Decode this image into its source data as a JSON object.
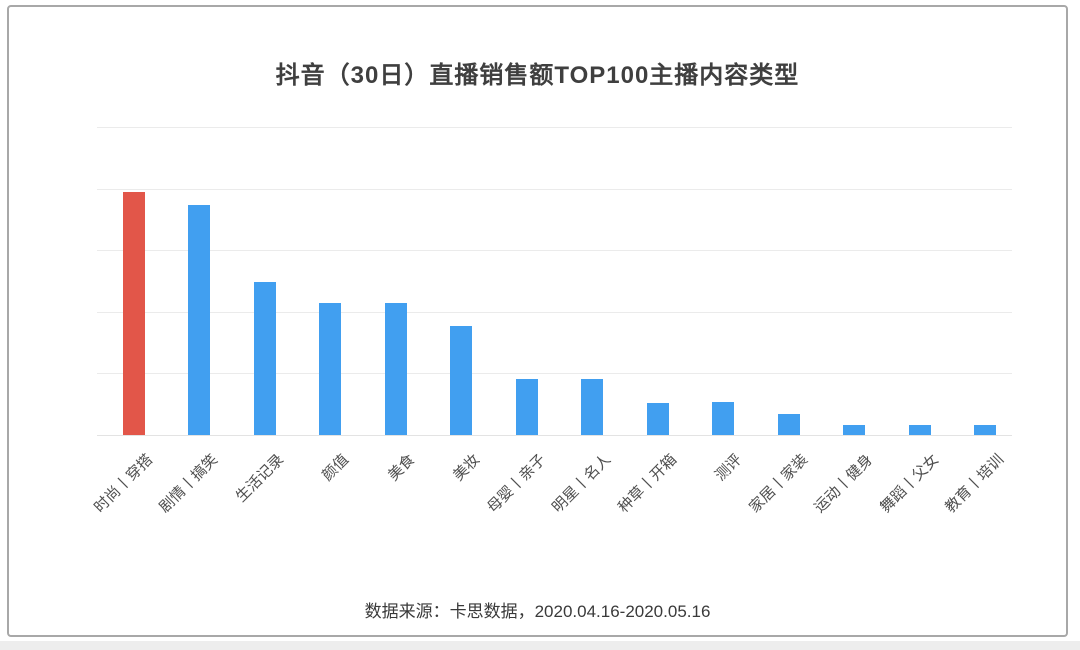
{
  "page": {
    "card_border_color": "#a8a8a8",
    "bottom_strip_color": "#ededed"
  },
  "chart_data": {
    "type": "bar",
    "title": "抖音（30日）直播销售额TOP100主播内容类型",
    "source_note": "数据来源：卡思数据，2020.04.16-2020.05.16",
    "categories": [
      "时尚丨穿搭",
      "剧情丨搞笑",
      "生活记录",
      "颜值",
      "美食",
      "美妆",
      "母婴丨亲子",
      "明星丨名人",
      "种草丨开箱",
      "测评",
      "家居丨家装",
      "运动丨健身",
      "舞蹈丨父女",
      "教育丨培训"
    ],
    "values": [
      19.7,
      18.6,
      12.4,
      10.7,
      10.7,
      8.8,
      4.5,
      4.5,
      2.6,
      2.7,
      1.7,
      0.8,
      0.8,
      0.8
    ],
    "highlight_index": 0,
    "highlight_color": "#e25649",
    "bar_color": "#419ff0",
    "ylim": [
      0,
      25
    ],
    "gridline_step": 5,
    "grid": true,
    "y_tick_labels_visible": false,
    "x_label_rotation_deg": -45,
    "legend": "none"
  }
}
